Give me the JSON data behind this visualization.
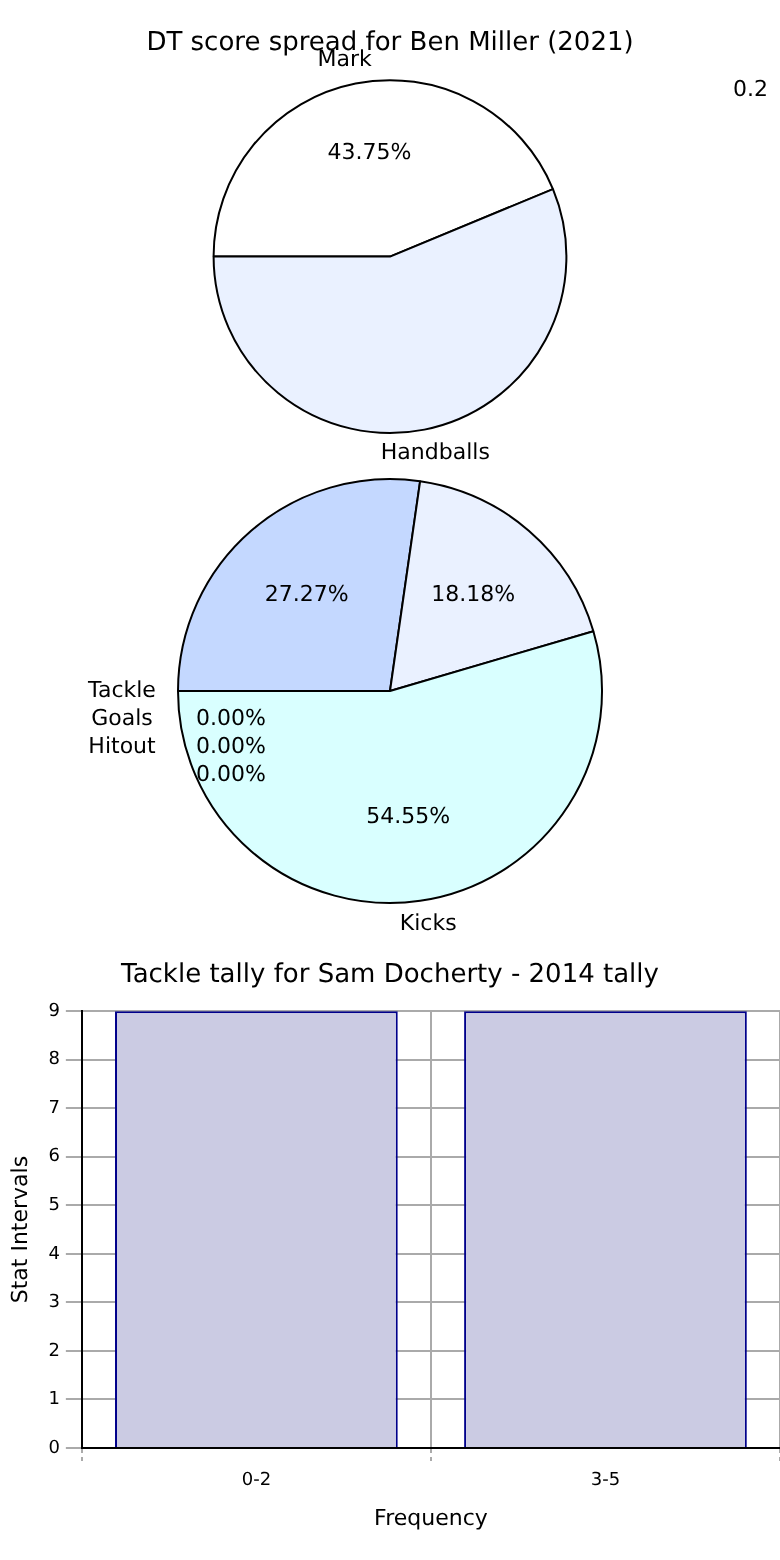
{
  "chart_data": [
    {
      "type": "pie",
      "title": "DT score spread for Ben Miller (2021)",
      "categories": [
        "Mark",
        "Handballs"
      ],
      "values": [
        43.75,
        56.25
      ],
      "colors": [
        "#ffffff",
        "#eaf1ff"
      ],
      "value_labels": [
        "43.75%",
        null
      ],
      "annotations": [
        "0.2"
      ],
      "legend": false
    },
    {
      "type": "pie",
      "categories": [
        null,
        null,
        "Kicks",
        "Tackle",
        "Goals",
        "Hitout"
      ],
      "values": [
        27.27,
        18.18,
        54.55,
        0,
        0,
        0
      ],
      "colors": [
        "#c4d8ff",
        "#eaf1ff",
        "#d9ffff",
        "#ffffff",
        "#ffffff",
        "#ffffff"
      ],
      "value_labels": [
        "27.27%",
        "18.18%",
        "54.55%",
        "0.00%",
        "0.00%",
        "0.00%"
      ],
      "legend": false
    },
    {
      "type": "bar",
      "title": "Tackle tally for Sam Docherty - 2014 tally",
      "categories": [
        "0-2",
        "3-5"
      ],
      "values": [
        9,
        9
      ],
      "color": "#cbcbe3",
      "xlabel": "Frequency",
      "ylabel": "Stat Intervals",
      "ylim": [
        0,
        9
      ],
      "yticks": [
        0,
        1,
        2,
        3,
        4,
        5,
        6,
        7,
        8,
        9
      ],
      "grid": true,
      "legend": false
    }
  ]
}
